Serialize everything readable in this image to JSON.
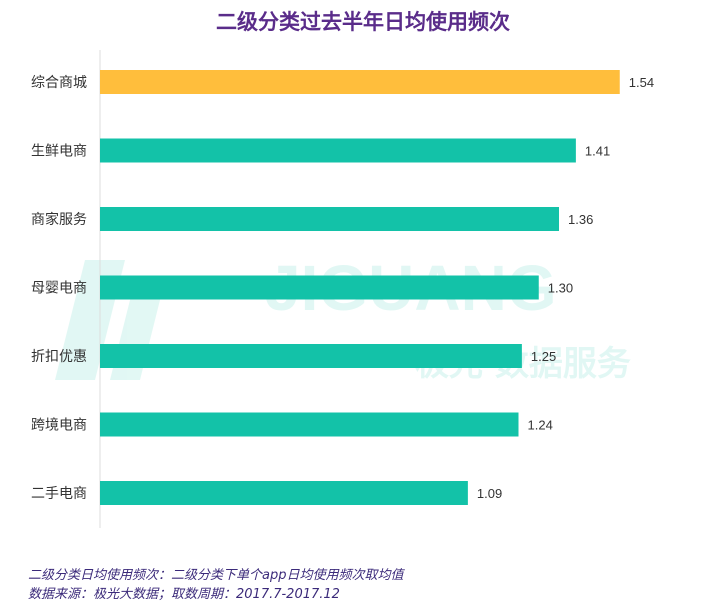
{
  "title": "二级分类过去半年日均使用频次",
  "watermark": {
    "brand": "JIGUANG",
    "subtitle": "极光 数据服务"
  },
  "chart_data": {
    "type": "bar",
    "orientation": "horizontal",
    "categories": [
      "综合商城",
      "生鲜电商",
      "商家服务",
      "母婴电商",
      "折扣优惠",
      "跨境电商",
      "二手电商"
    ],
    "values": [
      1.54,
      1.41,
      1.36,
      1.3,
      1.25,
      1.24,
      1.09
    ],
    "data_labels": [
      "1.54",
      "1.41",
      "1.36",
      "1.30",
      "1.25",
      "1.24",
      "1.09"
    ],
    "highlight_index": 0,
    "xlim": [
      0,
      1.6
    ],
    "colors": {
      "highlight": "#FFBE3C",
      "default": "#13C2A8",
      "axis": "#DDDDDD",
      "label": "#333333"
    },
    "legend": "none",
    "grid": false
  },
  "footnotes": [
    "二级分类日均使用频次：二级分类下单个app日均使用频次取均值",
    "数据来源：极光大数据；取数周期：2017.7-2017.12"
  ]
}
